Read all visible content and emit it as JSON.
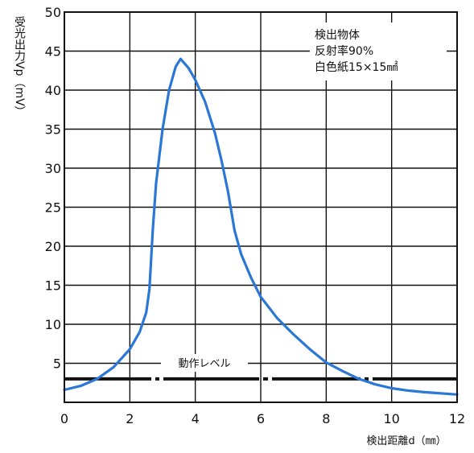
{
  "chart_data": {
    "type": "line",
    "ylabel": "受光出力Vp（mV）",
    "xlabel": "検出距離d（㎜）",
    "xlim": [
      0,
      12
    ],
    "ylim": [
      0,
      50
    ],
    "xticks": [
      0,
      2,
      4,
      6,
      8,
      10,
      12
    ],
    "yticks": [
      5,
      10,
      15,
      20,
      25,
      30,
      35,
      40,
      45,
      50
    ],
    "grid": true,
    "annotation": [
      "検出物体",
      "反射率90%",
      "白色紙15×15㎟"
    ],
    "threshold": {
      "label": "動作レベル",
      "value": 3
    },
    "series": [
      {
        "color": "#2a77d6",
        "points": [
          [
            0,
            1.6
          ],
          [
            0.5,
            2.1
          ],
          [
            1,
            3.0
          ],
          [
            1.5,
            4.5
          ],
          [
            2,
            6.8
          ],
          [
            2.3,
            9.0
          ],
          [
            2.5,
            11.5
          ],
          [
            2.6,
            14.5
          ],
          [
            2.7,
            22.0
          ],
          [
            2.8,
            28.0
          ],
          [
            3.0,
            35.0
          ],
          [
            3.2,
            40.0
          ],
          [
            3.4,
            43.0
          ],
          [
            3.55,
            44.0
          ],
          [
            3.8,
            42.8
          ],
          [
            4.0,
            41.3
          ],
          [
            4.3,
            38.5
          ],
          [
            4.6,
            34.5
          ],
          [
            4.8,
            31.0
          ],
          [
            5.0,
            27.0
          ],
          [
            5.2,
            22.0
          ],
          [
            5.4,
            19.0
          ],
          [
            5.7,
            16.0
          ],
          [
            6.0,
            13.5
          ],
          [
            6.5,
            10.8
          ],
          [
            7.0,
            8.7
          ],
          [
            7.5,
            6.8
          ],
          [
            8.0,
            5.1
          ],
          [
            8.5,
            4.0
          ],
          [
            9.0,
            3.0
          ],
          [
            9.5,
            2.3
          ],
          [
            10.0,
            1.8
          ],
          [
            10.5,
            1.5
          ],
          [
            11.0,
            1.3
          ],
          [
            12.0,
            1.0
          ]
        ]
      }
    ]
  }
}
